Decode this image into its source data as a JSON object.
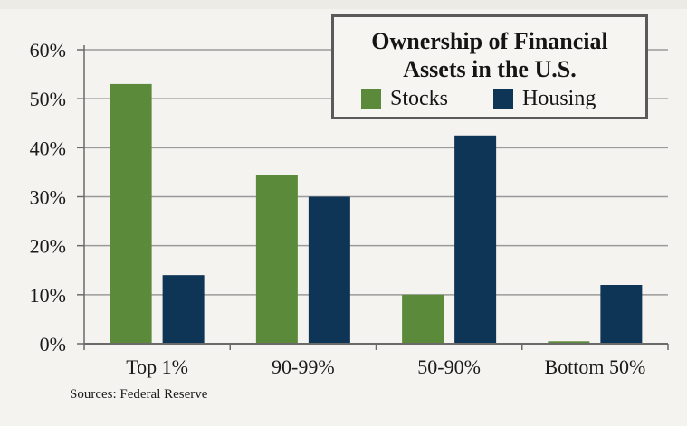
{
  "chart_data": {
    "type": "bar",
    "title": "Ownership of Financial Assets in the U.S.",
    "title_lines": [
      "Ownership of Financial",
      "Assets in the U.S."
    ],
    "categories": [
      "Top 1%",
      "90-99%",
      "50-90%",
      "Bottom 50%"
    ],
    "series": [
      {
        "name": "Stocks",
        "color": "#5b8a3a",
        "values": [
          53,
          34.5,
          10,
          0.5
        ]
      },
      {
        "name": "Housing",
        "color": "#0e3556",
        "values": [
          14,
          30,
          42.5,
          12
        ]
      }
    ],
    "ylim": [
      0,
      60
    ],
    "yticks": [
      0,
      10,
      20,
      30,
      40,
      50,
      60
    ],
    "ytick_labels": [
      "0%",
      "10%",
      "20%",
      "30%",
      "40%",
      "50%",
      "60%"
    ],
    "grid": true,
    "legend_position": "top-right",
    "source": "Sources: Federal Reserve"
  }
}
